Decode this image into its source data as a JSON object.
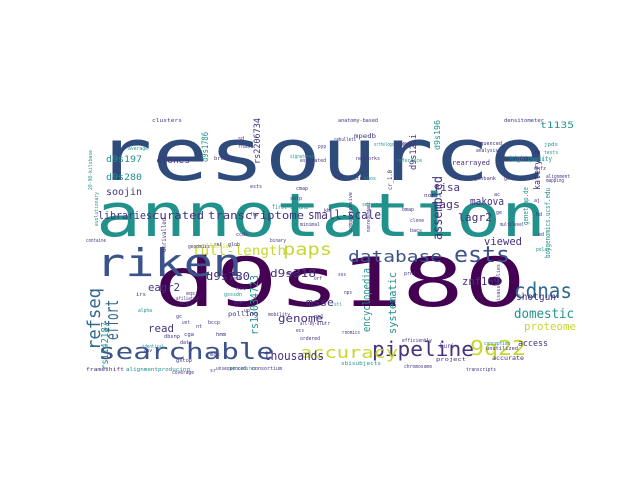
{
  "palette": {
    "navy": "#2f4b7c",
    "blue": "#3b528b",
    "steel": "#31688e",
    "teal": "#21918c",
    "sea": "#2a9d8f",
    "green": "#35b779",
    "lime": "#7ad151",
    "yellow": "#c8d632",
    "purple": "#440154",
    "indigo": "#46327e"
  },
  "words": [
    {
      "text": "resource",
      "color": "navy"
    },
    {
      "text": "annotation",
      "color": "teal"
    },
    {
      "text": "d9s180",
      "color": "purple"
    },
    {
      "text": "riken",
      "color": "blue"
    },
    {
      "text": "database",
      "color": "blue"
    },
    {
      "text": "ests",
      "color": "blue"
    },
    {
      "text": "pipeline",
      "color": "indigo"
    },
    {
      "text": "9q22",
      "color": "yellow"
    },
    {
      "text": "searchable",
      "color": "blue"
    },
    {
      "text": "accuracy",
      "color": "yellow"
    },
    {
      "text": "paps",
      "color": "yellow"
    },
    {
      "text": "cdnas",
      "color": "steel"
    },
    {
      "text": "effort",
      "color": "steel"
    },
    {
      "text": "refseq",
      "color": "steel"
    },
    {
      "text": "domestic",
      "color": "teal"
    },
    {
      "text": "full-length",
      "color": "yellow"
    },
    {
      "text": "small-scale",
      "color": "indigo"
    },
    {
      "text": "curated",
      "color": "indigo"
    },
    {
      "text": "transcriptome",
      "color": "indigo"
    },
    {
      "text": "libraries",
      "color": "indigo"
    },
    {
      "text": "thousands",
      "color": "indigo"
    },
    {
      "text": "genome",
      "color": "indigo"
    },
    {
      "text": "proteome",
      "color": "yellow"
    },
    {
      "text": "assembled",
      "color": "indigo"
    },
    {
      "text": "viewed",
      "color": "indigo"
    },
    {
      "text": "lagr2",
      "color": "indigo"
    },
    {
      "text": "makova",
      "color": "indigo"
    },
    {
      "text": "tags",
      "color": "indigo"
    },
    {
      "text": "risa",
      "color": "indigo"
    },
    {
      "text": "znf169",
      "color": "indigo"
    },
    {
      "text": "encyclopedia",
      "color": "teal"
    },
    {
      "text": "systematic",
      "color": "teal"
    },
    {
      "text": "msse",
      "color": "indigo"
    },
    {
      "text": "d9s318",
      "color": "indigo"
    },
    {
      "text": "d9s780",
      "color": "indigo"
    },
    {
      "text": "eagr2",
      "color": "indigo"
    },
    {
      "text": "read",
      "color": "indigo"
    },
    {
      "text": "soojin",
      "color": "indigo"
    },
    {
      "text": "d9s197",
      "color": "teal"
    },
    {
      "text": "d9s280",
      "color": "teal"
    },
    {
      "text": "d9s1786",
      "color": "teal"
    },
    {
      "text": "rs2206734",
      "color": "indigo"
    },
    {
      "text": "d9s12ii",
      "color": "indigo"
    },
    {
      "text": "d9s196",
      "color": "teal"
    },
    {
      "text": "t1135",
      "color": "teal"
    },
    {
      "text": "shotgun",
      "color": "indigo"
    },
    {
      "text": "access",
      "color": "indigo"
    },
    {
      "text": "kateryna",
      "color": "indigo"
    },
    {
      "text": "rs13034723",
      "color": "teal"
    },
    {
      "text": "rs1142187",
      "color": "teal"
    },
    {
      "text": "clones",
      "color": "indigo"
    },
    {
      "text": "rearrayed",
      "color": "indigo"
    },
    {
      "text": "high-quality",
      "color": "teal"
    },
    {
      "text": "collection",
      "color": "yellow"
    },
    {
      "text": "polling",
      "color": "indigo"
    },
    {
      "text": "unrivalled",
      "color": "indigo"
    },
    {
      "text": "first-strand",
      "color": "teal"
    },
    {
      "text": "frameshift",
      "color": "indigo"
    },
    {
      "text": "sbisubjects",
      "color": "teal"
    },
    {
      "text": "project",
      "color": "indigo"
    },
    {
      "text": "accurate",
      "color": "indigo"
    },
    {
      "text": "unutilized",
      "color": "indigo"
    },
    {
      "text": "alignmentproducing",
      "color": "teal"
    },
    {
      "text": "clusters",
      "color": "indigo"
    },
    {
      "text": "anatomy-based",
      "color": "indigo"
    },
    {
      "text": "densitometer",
      "color": "indigo"
    },
    {
      "text": "mpedb",
      "color": "indigo"
    },
    {
      "text": "networks",
      "color": "indigo"
    },
    {
      "text": "comprehensive",
      "color": "indigo"
    },
    {
      "text": "misassemblies",
      "color": "indigo"
    },
    {
      "text": "huri",
      "color": "indigo"
    },
    {
      "text": "genetrap.de",
      "color": "teal"
    },
    {
      "text": "boygenomics.ucsf.edu",
      "color": "teal"
    },
    {
      "text": "20-90-kilobase",
      "color": "teal"
    },
    {
      "text": "evolutionary",
      "color": "teal"
    },
    {
      "text": "browse",
      "color": "indigo"
    },
    {
      "text": "containe",
      "color": "indigo"
    },
    {
      "text": "genomics",
      "color": "indigo"
    },
    {
      "text": "nonredundant",
      "color": "indigo"
    },
    {
      "text": "cr_1.0",
      "color": "indigo"
    },
    {
      "text": "polar",
      "color": "teal"
    },
    {
      "text": "procedures",
      "color": "teal"
    },
    {
      "text": "mobility",
      "color": "indigo"
    },
    {
      "text": "multilevel",
      "color": "indigo"
    },
    {
      "text": "minimal",
      "color": "indigo"
    },
    {
      "text": "estimated",
      "color": "indigo"
    },
    {
      "text": "gsssdn",
      "color": "teal"
    },
    {
      "text": "signatures",
      "color": "teal"
    },
    {
      "text": "binary",
      "color": "indigo"
    },
    {
      "text": "ordered",
      "color": "indigo"
    },
    {
      "text": "non-l",
      "color": "indigo"
    },
    {
      "text": "pmr",
      "color": "indigo"
    },
    {
      "text": "rnomics",
      "color": "indigo"
    },
    {
      "text": "rebullets",
      "color": "indigo"
    },
    {
      "text": "orthologs",
      "color": "teal"
    },
    {
      "text": "cDNA",
      "color": "indigo"
    },
    {
      "text": "hesb",
      "color": "indigo"
    },
    {
      "text": "nsv",
      "color": "indigo"
    },
    {
      "text": "sd",
      "color": "indigo"
    },
    {
      "text": "rnas",
      "color": "indigo"
    },
    {
      "text": "chos",
      "color": "teal"
    },
    {
      "text": "wls",
      "color": "indigo"
    },
    {
      "text": "dbec",
      "color": "indigo"
    },
    {
      "text": "jpds",
      "color": "teal"
    },
    {
      "text": "tests",
      "color": "teal"
    },
    {
      "text": "dkfz",
      "color": "indigo"
    },
    {
      "text": "sequenced",
      "color": "indigo"
    },
    {
      "text": "analysis",
      "color": "indigo"
    },
    {
      "text": "genbank",
      "color": "indigo"
    },
    {
      "text": "reference",
      "color": "teal"
    },
    {
      "text": "coverage",
      "color": "indigo"
    },
    {
      "text": "alignment",
      "color": "indigo"
    },
    {
      "text": "mapping",
      "color": "indigo"
    },
    {
      "text": "average",
      "color": "teal"
    },
    {
      "text": "tools",
      "color": "teal"
    },
    {
      "text": "ftp",
      "color": "indigo"
    },
    {
      "text": "ests",
      "color": "indigo"
    },
    {
      "text": "cga",
      "color": "indigo"
    },
    {
      "text": "ecsl",
      "color": "indigo"
    },
    {
      "text": "data",
      "color": "indigo"
    },
    {
      "text": "gstop",
      "color": "indigo"
    },
    {
      "text": "alpha",
      "color": "teal"
    },
    {
      "text": "ref",
      "color": "indigo"
    },
    {
      "text": "dbsnp",
      "color": "indigo"
    },
    {
      "text": "glob",
      "color": "indigo"
    },
    {
      "text": "hmm",
      "color": "indigo"
    },
    {
      "text": "mgc",
      "color": "indigo"
    },
    {
      "text": "irs",
      "color": "indigo"
    },
    {
      "text": "eqsi",
      "color": "indigo"
    },
    {
      "text": "afiliated",
      "color": "indigo"
    },
    {
      "text": "conception",
      "color": "teal"
    },
    {
      "text": "chromosome",
      "color": "indigo"
    },
    {
      "text": "unsequenced",
      "color": "indigo"
    },
    {
      "text": "consortium",
      "color": "indigo"
    },
    {
      "text": "efficiently",
      "color": "indigo"
    },
    {
      "text": "identical",
      "color": "teal"
    },
    {
      "text": "transcripts",
      "color": "indigo"
    },
    {
      "text": "ctr",
      "color": "indigo"
    },
    {
      "text": "bmap",
      "color": "indigo"
    },
    {
      "text": "cmap",
      "color": "indigo"
    },
    {
      "text": "sotp",
      "color": "indigo"
    },
    {
      "text": "sequence",
      "color": "teal"
    },
    {
      "text": "clone",
      "color": "indigo"
    },
    {
      "text": "bacs",
      "color": "indigo"
    },
    {
      "text": "prnl",
      "color": "indigo"
    },
    {
      "text": "stl",
      "color": "teal"
    },
    {
      "text": "pml",
      "color": "indigo"
    },
    {
      "text": "bccp",
      "color": "indigo"
    },
    {
      "text": "all-by-all",
      "color": "indigo"
    },
    {
      "text": "unt",
      "color": "indigo"
    },
    {
      "text": "ecs",
      "color": "indigo"
    },
    {
      "text": "utr",
      "color": "indigo"
    },
    {
      "text": "ccds",
      "color": "indigo"
    },
    {
      "text": "pyp",
      "color": "indigo"
    },
    {
      "text": "orf",
      "color": "indigo"
    },
    {
      "text": "nps",
      "color": "indigo"
    },
    {
      "text": "sos",
      "color": "indigo"
    },
    {
      "text": "cnv",
      "color": "indigo"
    },
    {
      "text": "nt",
      "color": "indigo"
    },
    {
      "text": "gc",
      "color": "indigo"
    },
    {
      "text": "ac",
      "color": "indigo"
    },
    {
      "text": "ge",
      "color": "indigo"
    },
    {
      "text": "go",
      "color": "indigo"
    },
    {
      "text": "hd",
      "color": "indigo"
    },
    {
      "text": "aj",
      "color": "indigo"
    },
    {
      "text": "ed",
      "color": "indigo"
    },
    {
      "text": "kb",
      "color": "indigo"
    },
    {
      "text": "sr",
      "color": "indigo"
    },
    {
      "text": "up",
      "color": "indigo"
    }
  ]
}
